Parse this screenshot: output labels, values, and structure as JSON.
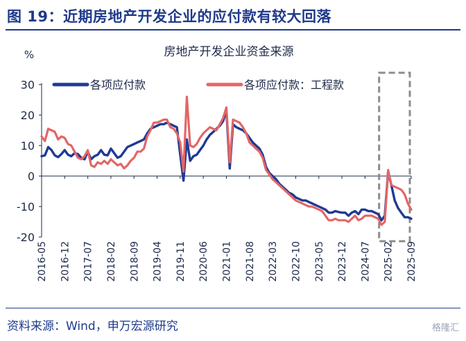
{
  "figure": {
    "title": "图 19：近期房地产开发企业的应付款有较大回落",
    "source": "资料来源：Wind，申万宏源研究",
    "watermark": "格隆汇"
  },
  "chart_data": {
    "type": "line",
    "title": "房地产开发企业资金来源",
    "ylabel": "%",
    "xlabel": "",
    "ylim": [
      -20,
      30
    ],
    "yticks": [
      -20,
      -10,
      0,
      10,
      20,
      30
    ],
    "legend_position": "top",
    "grid": false,
    "x_ticks": [
      "2016-05",
      "2016-12",
      "2017-07",
      "2018-02",
      "2018-09",
      "2019-04",
      "2019-11",
      "2020-06",
      "2021-01",
      "2021-08",
      "2022-03",
      "2022-10",
      "2023-05",
      "2023-12",
      "2024-07",
      "2025-02",
      "2025-09"
    ],
    "x_start": "2016-05",
    "x_end": "2025-09",
    "series": [
      {
        "name": "各项应付款",
        "color": "#1f3a93",
        "points": [
          [
            "2016-05",
            6.5
          ],
          [
            "2016-06",
            6.8
          ],
          [
            "2016-07",
            9.5
          ],
          [
            "2016-08",
            8.5
          ],
          [
            "2016-09",
            6.8
          ],
          [
            "2016-10",
            6.2
          ],
          [
            "2016-11",
            7.2
          ],
          [
            "2016-12",
            8.5
          ],
          [
            "2017-01",
            7.0
          ],
          [
            "2017-02",
            6.5
          ],
          [
            "2017-03",
            7.5
          ],
          [
            "2017-04",
            7.2
          ],
          [
            "2017-05",
            6.0
          ],
          [
            "2017-06",
            5.5
          ],
          [
            "2017-07",
            8.0
          ],
          [
            "2017-08",
            5.5
          ],
          [
            "2017-09",
            6.5
          ],
          [
            "2017-10",
            7.0
          ],
          [
            "2017-11",
            8.5
          ],
          [
            "2017-12",
            7.0
          ],
          [
            "2018-01",
            6.8
          ],
          [
            "2018-02",
            9.0
          ],
          [
            "2018-03",
            7.5
          ],
          [
            "2018-04",
            6.0
          ],
          [
            "2018-05",
            6.5
          ],
          [
            "2018-06",
            8.0
          ],
          [
            "2018-07",
            9.5
          ],
          [
            "2018-08",
            10.0
          ],
          [
            "2018-09",
            10.5
          ],
          [
            "2018-10",
            11.0
          ],
          [
            "2018-11",
            11.5
          ],
          [
            "2018-12",
            12.0
          ],
          [
            "2019-01",
            14.0
          ],
          [
            "2019-02",
            15.5
          ],
          [
            "2019-03",
            16.0
          ],
          [
            "2019-04",
            16.5
          ],
          [
            "2019-05",
            17.0
          ],
          [
            "2019-06",
            17.0
          ],
          [
            "2019-07",
            17.5
          ],
          [
            "2019-08",
            17.0
          ],
          [
            "2019-09",
            16.5
          ],
          [
            "2019-10",
            16.0
          ],
          [
            "2019-11",
            7.0
          ],
          [
            "2019-12",
            -1.5
          ],
          [
            "2020-01",
            12.0
          ],
          [
            "2020-02",
            5.0
          ],
          [
            "2020-03",
            6.5
          ],
          [
            "2020-04",
            7.0
          ],
          [
            "2020-05",
            8.5
          ],
          [
            "2020-06",
            10.0
          ],
          [
            "2020-07",
            12.0
          ],
          [
            "2020-08",
            13.5
          ],
          [
            "2020-09",
            14.5
          ],
          [
            "2020-10",
            15.5
          ],
          [
            "2020-11",
            16.5
          ],
          [
            "2020-12",
            18.0
          ],
          [
            "2021-01",
            21.5
          ],
          [
            "2021-02",
            2.5
          ],
          [
            "2021-03",
            17.0
          ],
          [
            "2021-04",
            16.0
          ],
          [
            "2021-05",
            15.5
          ],
          [
            "2021-06",
            15.0
          ],
          [
            "2021-07",
            14.0
          ],
          [
            "2021-08",
            12.5
          ],
          [
            "2021-09",
            11.0
          ],
          [
            "2021-10",
            10.0
          ],
          [
            "2021-11",
            9.0
          ],
          [
            "2021-12",
            7.0
          ],
          [
            "2022-01",
            3.0
          ],
          [
            "2022-02",
            1.0
          ],
          [
            "2022-03",
            0.0
          ],
          [
            "2022-04",
            -1.0
          ],
          [
            "2022-05",
            -2.5
          ],
          [
            "2022-06",
            -3.5
          ],
          [
            "2022-07",
            -4.5
          ],
          [
            "2022-08",
            -5.5
          ],
          [
            "2022-09",
            -6.0
          ],
          [
            "2022-10",
            -7.0
          ],
          [
            "2022-11",
            -7.5
          ],
          [
            "2022-12",
            -8.0
          ],
          [
            "2023-01",
            -8.0
          ],
          [
            "2023-02",
            -8.5
          ],
          [
            "2023-03",
            -9.0
          ],
          [
            "2023-04",
            -9.5
          ],
          [
            "2023-05",
            -10.0
          ],
          [
            "2023-06",
            -10.5
          ],
          [
            "2023-07",
            -11.0
          ],
          [
            "2023-08",
            -12.0
          ],
          [
            "2023-09",
            -12.0
          ],
          [
            "2023-10",
            -11.5
          ],
          [
            "2023-11",
            -11.8
          ],
          [
            "2023-12",
            -12.0
          ],
          [
            "2024-01",
            -12.0
          ],
          [
            "2024-02",
            -13.0
          ],
          [
            "2024-03",
            -12.0
          ],
          [
            "2024-04",
            -11.5
          ],
          [
            "2024-05",
            -12.5
          ],
          [
            "2024-06",
            -11.0
          ],
          [
            "2024-07",
            -11.0
          ],
          [
            "2024-08",
            -11.5
          ],
          [
            "2024-09",
            -11.5
          ],
          [
            "2024-10",
            -12.0
          ],
          [
            "2024-11",
            -12.5
          ],
          [
            "2024-12",
            -14.5
          ],
          [
            "2025-01",
            -13.0
          ],
          [
            "2025-02",
            1.5
          ],
          [
            "2025-03",
            -3.0
          ],
          [
            "2025-04",
            -8.0
          ],
          [
            "2025-05",
            -10.5
          ],
          [
            "2025-06",
            -12.0
          ],
          [
            "2025-07",
            -13.5
          ],
          [
            "2025-08",
            -13.5
          ],
          [
            "2025-09",
            -14.0
          ]
        ]
      },
      {
        "name": "各项应付款：工程款",
        "color": "#e36666",
        "points": [
          [
            "2016-05",
            13.0
          ],
          [
            "2016-06",
            11.5
          ],
          [
            "2016-07",
            15.5
          ],
          [
            "2016-08",
            15.0
          ],
          [
            "2016-09",
            14.5
          ],
          [
            "2016-10",
            12.0
          ],
          [
            "2016-11",
            13.0
          ],
          [
            "2016-12",
            12.5
          ],
          [
            "2017-01",
            10.5
          ],
          [
            "2017-02",
            10.0
          ],
          [
            "2017-03",
            8.0
          ],
          [
            "2017-04",
            6.0
          ],
          [
            "2017-05",
            5.5
          ],
          [
            "2017-06",
            6.5
          ],
          [
            "2017-07",
            8.5
          ],
          [
            "2017-08",
            3.5
          ],
          [
            "2017-09",
            3.0
          ],
          [
            "2017-10",
            4.5
          ],
          [
            "2017-11",
            4.0
          ],
          [
            "2017-12",
            5.0
          ],
          [
            "2018-01",
            4.0
          ],
          [
            "2018-02",
            5.5
          ],
          [
            "2018-03",
            4.5
          ],
          [
            "2018-04",
            3.5
          ],
          [
            "2018-05",
            4.0
          ],
          [
            "2018-06",
            2.5
          ],
          [
            "2018-07",
            3.5
          ],
          [
            "2018-08",
            5.0
          ],
          [
            "2018-09",
            6.0
          ],
          [
            "2018-10",
            8.0
          ],
          [
            "2018-11",
            8.0
          ],
          [
            "2018-12",
            9.0
          ],
          [
            "2019-01",
            13.0
          ],
          [
            "2019-02",
            15.0
          ],
          [
            "2019-03",
            17.5
          ],
          [
            "2019-04",
            17.5
          ],
          [
            "2019-05",
            18.0
          ],
          [
            "2019-06",
            18.5
          ],
          [
            "2019-07",
            18.5
          ],
          [
            "2019-08",
            16.0
          ],
          [
            "2019-09",
            15.5
          ],
          [
            "2019-10",
            14.0
          ],
          [
            "2019-11",
            11.0
          ],
          [
            "2019-12",
            1.5
          ],
          [
            "2020-01",
            26.0
          ],
          [
            "2020-02",
            10.0
          ],
          [
            "2020-03",
            9.5
          ],
          [
            "2020-04",
            10.5
          ],
          [
            "2020-05",
            12.5
          ],
          [
            "2020-06",
            14.0
          ],
          [
            "2020-07",
            15.0
          ],
          [
            "2020-08",
            16.0
          ],
          [
            "2020-09",
            15.5
          ],
          [
            "2020-10",
            15.0
          ],
          [
            "2020-11",
            17.0
          ],
          [
            "2020-12",
            19.0
          ],
          [
            "2021-01",
            22.5
          ],
          [
            "2021-02",
            4.5
          ],
          [
            "2021-03",
            18.5
          ],
          [
            "2021-04",
            18.0
          ],
          [
            "2021-05",
            17.5
          ],
          [
            "2021-06",
            16.0
          ],
          [
            "2021-07",
            14.0
          ],
          [
            "2021-08",
            11.0
          ],
          [
            "2021-09",
            10.0
          ],
          [
            "2021-10",
            9.0
          ],
          [
            "2021-11",
            8.0
          ],
          [
            "2021-12",
            6.0
          ],
          [
            "2022-01",
            2.0
          ],
          [
            "2022-02",
            0.5
          ],
          [
            "2022-03",
            -1.0
          ],
          [
            "2022-04",
            -2.0
          ],
          [
            "2022-05",
            -3.0
          ],
          [
            "2022-06",
            -4.0
          ],
          [
            "2022-07",
            -5.0
          ],
          [
            "2022-08",
            -6.0
          ],
          [
            "2022-09",
            -7.0
          ],
          [
            "2022-10",
            -8.0
          ],
          [
            "2022-11",
            -8.5
          ],
          [
            "2022-12",
            -9.0
          ],
          [
            "2023-01",
            -9.5
          ],
          [
            "2023-02",
            -10.0
          ],
          [
            "2023-03",
            -10.0
          ],
          [
            "2023-04",
            -10.5
          ],
          [
            "2023-05",
            -11.0
          ],
          [
            "2023-06",
            -11.5
          ],
          [
            "2023-07",
            -13.0
          ],
          [
            "2023-08",
            -14.5
          ],
          [
            "2023-09",
            -14.5
          ],
          [
            "2023-10",
            -14.0
          ],
          [
            "2023-11",
            -14.5
          ],
          [
            "2023-12",
            -14.5
          ],
          [
            "2024-01",
            -14.5
          ],
          [
            "2024-02",
            -15.0
          ],
          [
            "2024-03",
            -14.0
          ],
          [
            "2024-04",
            -13.0
          ],
          [
            "2024-05",
            -14.5
          ],
          [
            "2024-06",
            -14.0
          ],
          [
            "2024-07",
            -13.0
          ],
          [
            "2024-08",
            -13.0
          ],
          [
            "2024-09",
            -13.0
          ],
          [
            "2024-10",
            -13.5
          ],
          [
            "2024-11",
            -14.0
          ],
          [
            "2024-12",
            -16.0
          ],
          [
            "2025-01",
            -15.0
          ],
          [
            "2025-02",
            2.0
          ],
          [
            "2025-03",
            -3.0
          ],
          [
            "2025-04",
            -3.5
          ],
          [
            "2025-05",
            -4.0
          ],
          [
            "2025-06",
            -4.5
          ],
          [
            "2025-07",
            -6.0
          ],
          [
            "2025-08",
            -9.0
          ],
          [
            "2025-09",
            -11.0
          ]
        ]
      }
    ],
    "highlight": {
      "from": "2025-02",
      "to": "2025-09",
      "style": "dashed box",
      "color": "#8c8c8c"
    }
  }
}
